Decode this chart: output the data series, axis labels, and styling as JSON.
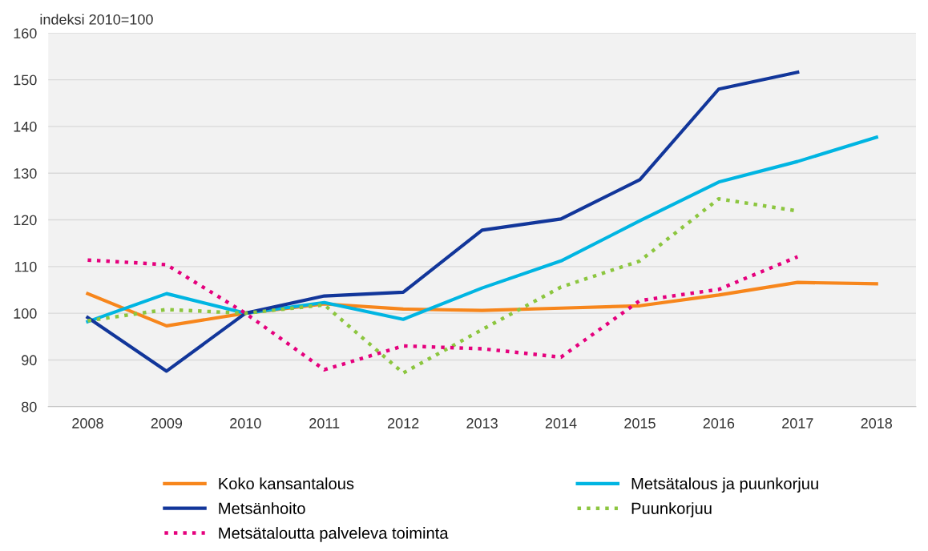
{
  "chart_data": {
    "type": "line",
    "ylabel": "indeksi 2010=100",
    "categories": [
      "2008",
      "2009",
      "2010",
      "2011",
      "2012",
      "2013",
      "2014",
      "2015",
      "2016",
      "2017",
      "2018"
    ],
    "series": [
      {
        "name": "Koko kansantalous",
        "color": "#f7861c",
        "line_style": "solid",
        "values": [
          104.2,
          97.3,
          100,
          102,
          100.9,
          100.6,
          101.1,
          101.6,
          103.9,
          106.6,
          106.3
        ]
      },
      {
        "name": "Metsätalous ja puunkorjuu",
        "color": "#00b5e2",
        "line_style": "solid",
        "values": [
          98.2,
          104.2,
          100,
          102.3,
          98.7,
          105.4,
          111.2,
          119.8,
          128.1,
          132.5,
          137.7
        ]
      },
      {
        "name": "Metsänhoito",
        "color": "#12369a",
        "line_style": "solid",
        "values": [
          99.1,
          87.6,
          100,
          103.7,
          104.5,
          117.8,
          120.2,
          128.6,
          148,
          151.6,
          null
        ]
      },
      {
        "name": "Puunkorjuu",
        "color": "#8cc63f",
        "line_style": "dotted",
        "values": [
          98.4,
          100.8,
          100,
          101.8,
          87.2,
          96.5,
          105.6,
          111.2,
          124.5,
          121.9,
          null
        ]
      },
      {
        "name": "Metsätaloutta palveleva toiminta",
        "color": "#e5007d",
        "line_style": "dotted",
        "values": [
          111.4,
          110.4,
          100,
          87.9,
          93,
          92.4,
          90.6,
          102.7,
          105.1,
          112.1,
          null
        ]
      }
    ],
    "ylim": [
      80,
      160
    ],
    "yticks": [
      80,
      90,
      100,
      110,
      120,
      130,
      140,
      150,
      160
    ],
    "grid": "y",
    "legend": "bottom",
    "marker": "none"
  }
}
